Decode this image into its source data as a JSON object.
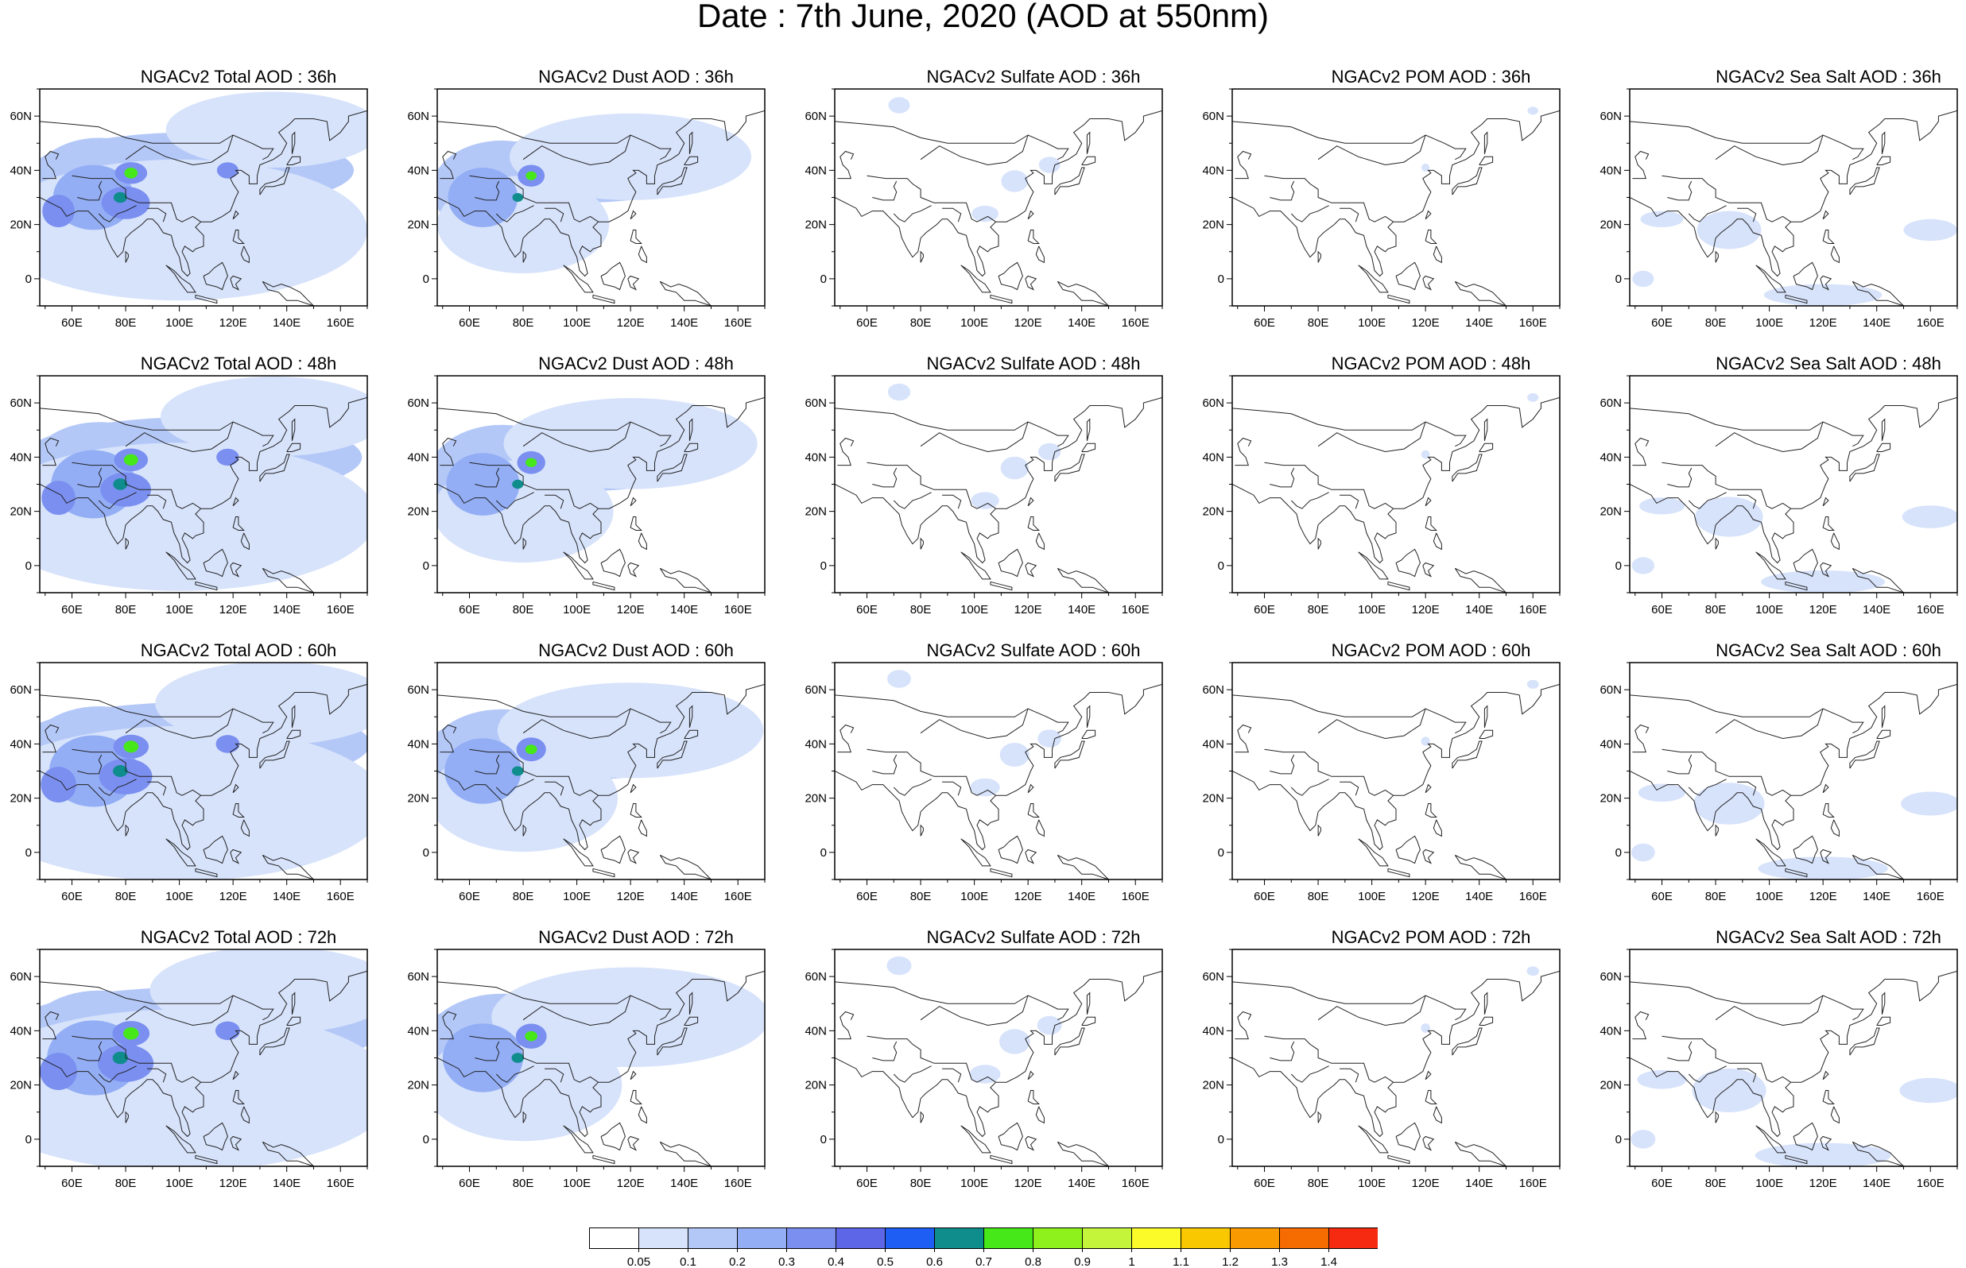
{
  "title": "Date : 7th June, 2020 (AOD at 550nm)",
  "panels": [
    [
      "NGACv2 Total AOD : 36h",
      "NGACv2 Dust AOD : 36h",
      "NGACv2 Sulfate AOD : 36h",
      "NGACv2 POM AOD : 36h",
      "NGACv2 Sea Salt AOD : 36h"
    ],
    [
      "NGACv2 Total AOD : 48h",
      "NGACv2 Dust AOD : 48h",
      "NGACv2 Sulfate AOD : 48h",
      "NGACv2 POM AOD : 48h",
      "NGACv2 Sea Salt AOD : 48h"
    ],
    [
      "NGACv2 Total AOD : 60h",
      "NGACv2 Dust AOD : 60h",
      "NGACv2 Sulfate AOD : 60h",
      "NGACv2 POM AOD : 60h",
      "NGACv2 Sea Salt AOD : 60h"
    ],
    [
      "NGACv2 Total AOD : 72h",
      "NGACv2 Dust AOD : 72h",
      "NGACv2 Sulfate AOD : 72h",
      "NGACv2 POM AOD : 72h",
      "NGACv2 Sea Salt  AOD : 72h"
    ]
  ],
  "axes": {
    "x_ticks": [
      "60E",
      "80E",
      "100E",
      "120E",
      "140E",
      "160E"
    ],
    "y_ticks": [
      "60N",
      "40N",
      "20N",
      "0"
    ],
    "lon_range": [
      48,
      170
    ],
    "lat_range": [
      -10,
      70
    ]
  },
  "colorbar": {
    "labels": [
      "0.05",
      "0.1",
      "0.2",
      "0.3",
      "0.4",
      "0.5",
      "0.6",
      "0.7",
      "0.8",
      "0.9",
      "1",
      "1.1",
      "1.2",
      "1.3",
      "1.4"
    ],
    "colors": [
      "#ffffff",
      "#d7e3fb",
      "#b4c8f8",
      "#93aef5",
      "#7a8ff0",
      "#5d66e7",
      "#1e5ef5",
      "#0f8c8c",
      "#46e81a",
      "#8ff11b",
      "#c4f53a",
      "#fbfb2a",
      "#f9c800",
      "#f89a00",
      "#f66c00",
      "#f52a10"
    ]
  },
  "fields": {
    "total": [
      {
        "lon": 70,
        "lat": 33,
        "rx": 26,
        "ry": 19,
        "lvl": 2
      },
      {
        "lon": 105,
        "lat": 40,
        "rx": 60,
        "ry": 14,
        "lvl": 2
      },
      {
        "lon": 100,
        "lat": 18,
        "rx": 70,
        "ry": 26,
        "lvl": 1
      },
      {
        "lon": 135,
        "lat": 55,
        "rx": 40,
        "ry": 14,
        "lvl": 1
      },
      {
        "lon": 68,
        "lat": 30,
        "rx": 15,
        "ry": 12,
        "lvl": 3
      },
      {
        "lon": 80,
        "lat": 28,
        "rx": 9,
        "ry": 6,
        "lvl": 4
      },
      {
        "lon": 55,
        "lat": 25,
        "rx": 6,
        "ry": 6,
        "lvl": 4
      },
      {
        "lon": 82,
        "lat": 39,
        "rx": 6,
        "ry": 4,
        "lvl": 4
      },
      {
        "lon": 82,
        "lat": 39,
        "rx": 2.5,
        "ry": 2,
        "lvl": 8
      },
      {
        "lon": 78,
        "lat": 30,
        "rx": 2.5,
        "ry": 2,
        "lvl": 7
      },
      {
        "lon": 118,
        "lat": 40,
        "rx": 4,
        "ry": 3,
        "lvl": 4
      }
    ],
    "dust": [
      {
        "lon": 72,
        "lat": 33,
        "rx": 26,
        "ry": 18,
        "lvl": 2
      },
      {
        "lon": 100,
        "lat": 40,
        "rx": 50,
        "ry": 12,
        "lvl": 2
      },
      {
        "lon": 120,
        "lat": 45,
        "rx": 45,
        "ry": 16,
        "lvl": 1
      },
      {
        "lon": 80,
        "lat": 20,
        "rx": 32,
        "ry": 18,
        "lvl": 1
      },
      {
        "lon": 65,
        "lat": 30,
        "rx": 13,
        "ry": 11,
        "lvl": 3
      },
      {
        "lon": 83,
        "lat": 38,
        "rx": 5,
        "ry": 4,
        "lvl": 4
      },
      {
        "lon": 83,
        "lat": 38,
        "rx": 2,
        "ry": 1.6,
        "lvl": 8
      },
      {
        "lon": 78,
        "lat": 30,
        "rx": 2,
        "ry": 1.6,
        "lvl": 7
      }
    ],
    "sulfate": [
      {
        "lon": 115,
        "lat": 36,
        "rx": 5,
        "ry": 4,
        "lvl": 1
      },
      {
        "lon": 128,
        "lat": 42,
        "rx": 4,
        "ry": 3,
        "lvl": 1
      },
      {
        "lon": 72,
        "lat": 64,
        "rx": 4,
        "ry": 3,
        "lvl": 1
      },
      {
        "lon": 104,
        "lat": 24,
        "rx": 5,
        "ry": 3,
        "lvl": 1
      }
    ],
    "pom": [
      {
        "lon": 120,
        "lat": 41,
        "rx": 1.5,
        "ry": 1.5,
        "lvl": 1
      },
      {
        "lon": 160,
        "lat": 62,
        "rx": 2,
        "ry": 1.5,
        "lvl": 1
      }
    ],
    "seasalt": [
      {
        "lon": 85,
        "lat": 18,
        "rx": 12,
        "ry": 7,
        "lvl": 1
      },
      {
        "lon": 120,
        "lat": -6,
        "rx": 22,
        "ry": 4,
        "lvl": 1
      },
      {
        "lon": 160,
        "lat": 18,
        "rx": 10,
        "ry": 4,
        "lvl": 1
      },
      {
        "lon": 60,
        "lat": 22,
        "rx": 8,
        "ry": 3,
        "lvl": 1
      },
      {
        "lon": 53,
        "lat": 0,
        "rx": 4,
        "ry": 3,
        "lvl": 1
      }
    ]
  }
}
